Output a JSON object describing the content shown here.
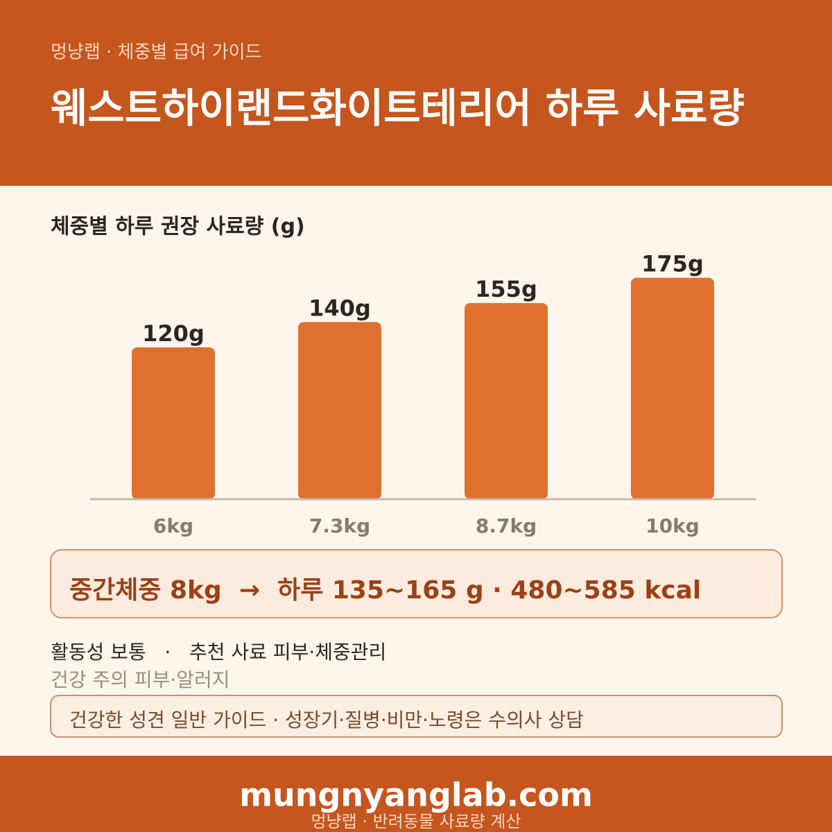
{
  "header": {
    "brand": "멍냥랩 · 체중별 급여 가이드",
    "title": "웨스트하이랜드화이트테리어 하루 사료량"
  },
  "chart_data": {
    "type": "bar",
    "title": "체중별 하루 권장 사료량 (g)",
    "categories": [
      "6kg",
      "7.3kg",
      "8.7kg",
      "10kg"
    ],
    "values": [
      120,
      140,
      155,
      175
    ],
    "value_labels": [
      "120g",
      "140g",
      "155g",
      "175g"
    ],
    "color": "#e07030",
    "ylim": [
      0,
      200
    ]
  },
  "summary": "중간체중 8kg  →  하루 135~165 g · 480~585 kcal",
  "info": [
    "활동성 보통   ·   추천 사료 피부·체중관리",
    "건강 주의 피부·알러지"
  ],
  "note": "건강한 성견 일반 가이드 · 성장기·질병·비만·노령은 수의사 상담",
  "footer": {
    "site": "mungnyanglab.com",
    "sub": "멍냥랩 · 반려동물 사료량 계산"
  }
}
